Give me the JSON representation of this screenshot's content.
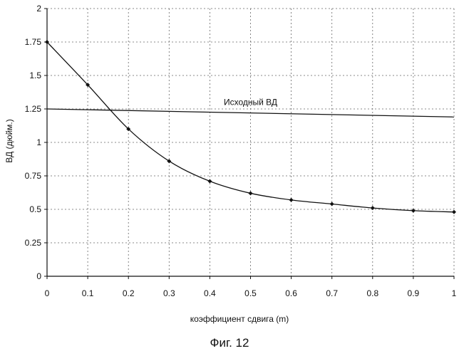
{
  "caption": "Фиг. 12",
  "chart_data": {
    "type": "line",
    "xlabel": "коэффициент сдвига (m)",
    "ylabel": "ВД (дюйм.)",
    "xlim": [
      0,
      1
    ],
    "ylim": [
      0,
      2
    ],
    "x_ticks": [
      "0",
      "0.1",
      "0.2",
      "0.3",
      "0.4",
      "0.5",
      "0.6",
      "0.7",
      "0.8",
      "0.9",
      "1"
    ],
    "x_tick_values": [
      0,
      0.1,
      0.2,
      0.3,
      0.4,
      0.5,
      0.6,
      0.7,
      0.8,
      0.9,
      1
    ],
    "y_ticks": [
      "0",
      "0.25",
      "0.5",
      "0.75",
      "1",
      "1.25",
      "1.5",
      "1.75",
      "2"
    ],
    "y_tick_values": [
      0,
      0.25,
      0.5,
      0.75,
      1,
      1.25,
      1.5,
      1.75,
      2
    ],
    "grid": true,
    "series": [
      {
        "name": "",
        "marker": "diamond",
        "x": [
          0,
          0.1,
          0.2,
          0.3,
          0.4,
          0.5,
          0.6,
          0.7,
          0.8,
          0.9,
          1
        ],
        "y": [
          1.75,
          1.43,
          1.1,
          0.86,
          0.71,
          0.62,
          0.57,
          0.54,
          0.51,
          0.49,
          0.48
        ]
      },
      {
        "name": "Исходный ВД",
        "marker": "none",
        "x": [
          0,
          1
        ],
        "y": [
          1.25,
          1.19
        ]
      }
    ],
    "annotations": [
      {
        "text": "Исходный ВД",
        "x": 0.5,
        "y": 1.28
      }
    ]
  }
}
